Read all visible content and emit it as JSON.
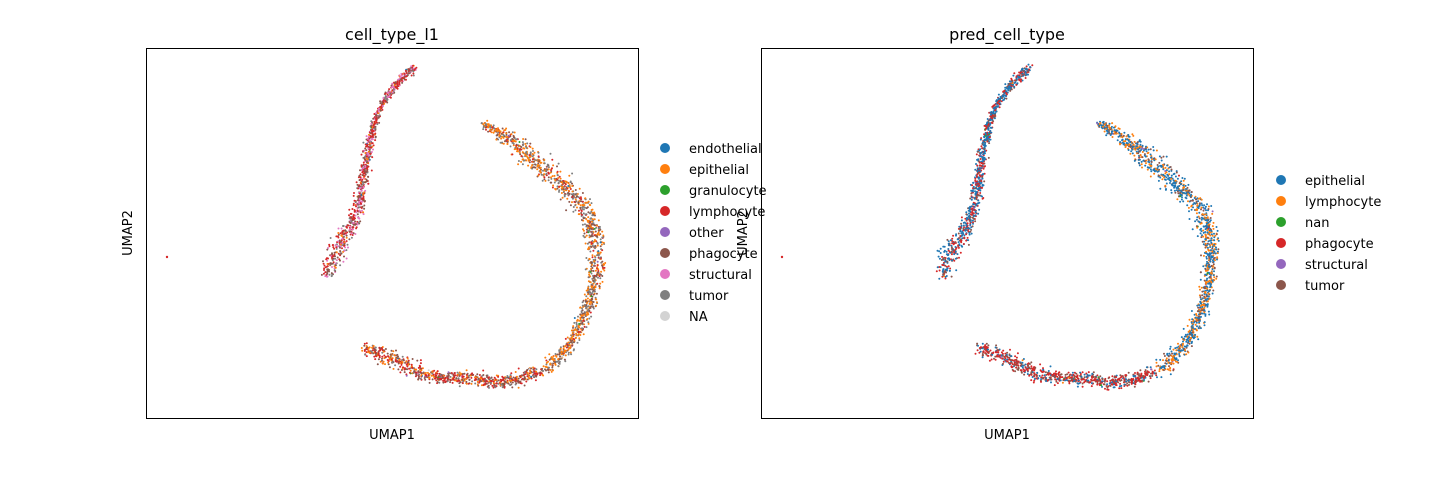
{
  "chart_data": [
    {
      "type": "scatter",
      "title": "cell_type_l1",
      "xlabel": "UMAP1",
      "ylabel": "UMAP2",
      "grid": false,
      "legend_position": "right",
      "legend": [
        {
          "label": "endothelial",
          "color": "#1f77b4"
        },
        {
          "label": "epithelial",
          "color": "#ff7f0e"
        },
        {
          "label": "granulocyte",
          "color": "#2ca02c"
        },
        {
          "label": "lymphocyte",
          "color": "#d62728"
        },
        {
          "label": "other",
          "color": "#9467bd"
        },
        {
          "label": "phagocyte",
          "color": "#8c564b"
        },
        {
          "label": "structural",
          "color": "#e377c2"
        },
        {
          "label": "tumor",
          "color": "#7f7f7f"
        },
        {
          "label": "NA",
          "color": "#d3d3d3"
        }
      ],
      "regions": [
        {
          "name": "left-arm",
          "dominant": [
            "lymphocyte",
            "phagocyte",
            "structural",
            "tumor",
            "epithelial"
          ]
        },
        {
          "name": "right-arc",
          "dominant": [
            "epithelial",
            "tumor",
            "phagocyte",
            "lymphocyte"
          ]
        },
        {
          "name": "bottom",
          "dominant": [
            "lymphocyte",
            "phagocyte",
            "epithelial",
            "tumor"
          ]
        }
      ]
    },
    {
      "type": "scatter",
      "title": "pred_cell_type",
      "xlabel": "UMAP1",
      "ylabel": "UMAP2",
      "grid": false,
      "legend_position": "right",
      "legend": [
        {
          "label": "epithelial",
          "color": "#1f77b4"
        },
        {
          "label": "lymphocyte",
          "color": "#ff7f0e"
        },
        {
          "label": "nan",
          "color": "#2ca02c"
        },
        {
          "label": "phagocyte",
          "color": "#d62728"
        },
        {
          "label": "structural",
          "color": "#9467bd"
        },
        {
          "label": "tumor",
          "color": "#8c564b"
        }
      ],
      "regions": [
        {
          "name": "left-arm",
          "dominant": [
            "epithelial",
            "phagocyte",
            "tumor"
          ]
        },
        {
          "name": "right-arc",
          "dominant": [
            "epithelial",
            "lymphocyte",
            "tumor"
          ]
        },
        {
          "name": "bottom",
          "dominant": [
            "phagocyte",
            "tumor",
            "epithelial"
          ]
        }
      ]
    }
  ]
}
